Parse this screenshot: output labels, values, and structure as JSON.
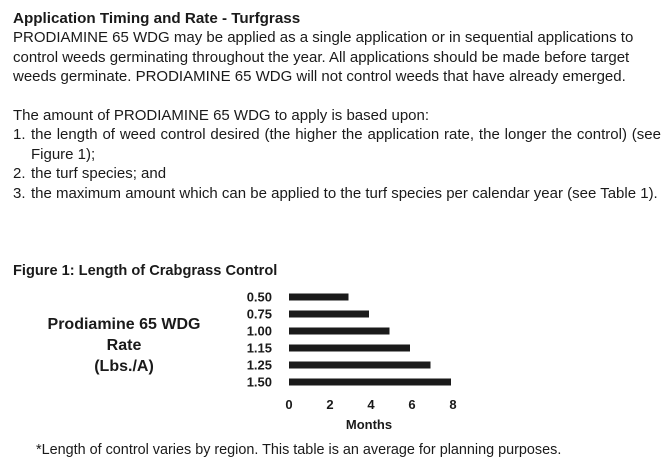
{
  "section": {
    "heading": "Application Timing and Rate - Turfgrass",
    "paragraph1": "PRODIAMINE 65 WDG may be applied as a single application or in sequential applications to control weeds germinating throughout the year.  All applications should be made before target weeds germinate.  PRODIAMINE 65 WDG will not control weeds that have already emerged.",
    "paragraph2": "The amount of PRODIAMINE 65 WDG to apply is based upon:",
    "criteria": [
      {
        "num": "1.",
        "text": "the length of weed control desired (the higher the application rate, the longer the control) (see Figure 1);"
      },
      {
        "num": "2.",
        "text": "the turf species; and"
      },
      {
        "num": "3.",
        "text": "the maximum amount which can be applied to the turf species per calendar year (see Table 1)."
      }
    ]
  },
  "figure": {
    "title": "Figure 1: Length of Crabgrass Control",
    "footnote": "*Length of control varies by region. This table is an average for planning purposes."
  },
  "chart_data": {
    "type": "bar",
    "orientation": "horizontal",
    "title": "Figure 1: Length of Crabgrass Control",
    "ylabel_lines": [
      "Prodiamine 65 WDG",
      "Rate",
      "(Lbs./A)"
    ],
    "xlabel": "Months",
    "categories": [
      "0.50",
      "0.75",
      "1.00",
      "1.15",
      "1.25",
      "1.50"
    ],
    "values": [
      3,
      4,
      5,
      6,
      7,
      8
    ],
    "xlim": [
      0,
      8
    ],
    "xticks": [
      0,
      2,
      4,
      6,
      8
    ],
    "bar_color": "#1a1a1a",
    "grid": false
  }
}
